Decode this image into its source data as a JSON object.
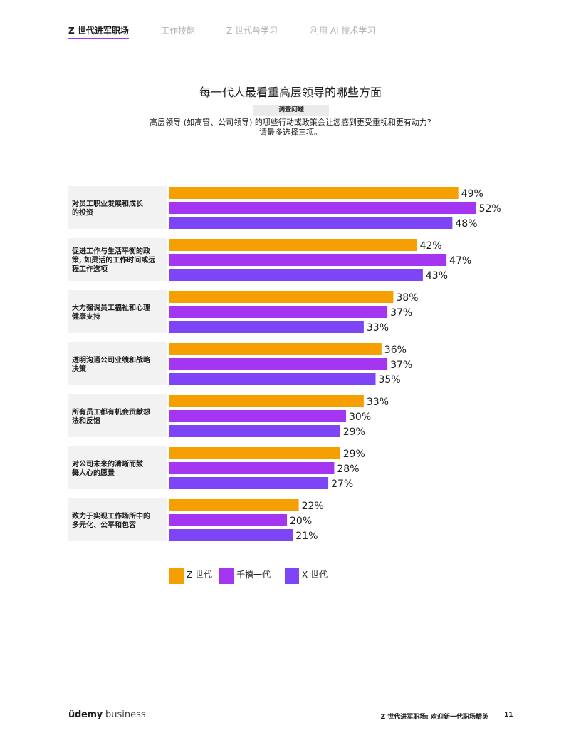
{
  "nav": {
    "tabs": [
      {
        "label": "Z 世代进军职场",
        "active": true
      },
      {
        "label": "工作技能",
        "active": false
      },
      {
        "label": "Z 世代与学习",
        "active": false
      },
      {
        "label": "利用 AI 技术学习",
        "active": false
      }
    ],
    "accent": "#a435f0"
  },
  "survey": {
    "badge": "调查问题",
    "question_line1": "高层领导 (如高管、公司领导) 的哪些行动或政策会让您感到更受重视和更有动力?",
    "question_line2": "请最多选择三项。"
  },
  "chart_data": {
    "type": "bar",
    "orientation": "horizontal",
    "title": "每一代人最看重高层领导的哪些方面",
    "categories": [
      "对员工职业发展和成长的投资",
      "促进工作与生活平衡的政策, 如灵活的工作时间或远程工作选项",
      "大力强调员工福祉和心理健康支持",
      "透明沟通公司业绩和战略决策",
      "所有员工都有机会贡献想法和反馈",
      "对公司未来的清晰而鼓舞人心的愿景",
      "致力于实现工作场所中的多元化、公平和包容"
    ],
    "series": [
      {
        "name": "Z 世代",
        "color": "#f59f00",
        "values": [
          49,
          42,
          38,
          36,
          33,
          29,
          22
        ]
      },
      {
        "name": "千禧一代",
        "color": "#a435f0",
        "values": [
          52,
          47,
          37,
          37,
          30,
          28,
          20
        ]
      },
      {
        "name": "X 世代",
        "color": "#7d45f5",
        "values": [
          48,
          43,
          33,
          35,
          29,
          27,
          21
        ]
      }
    ],
    "value_suffix": "%",
    "xlim": [
      0,
      100
    ],
    "grid": false,
    "legend_position": "bottom"
  },
  "footer": {
    "brand": "ûdemy",
    "brand_sub": "business",
    "doc_title": "Z 世代进军职场: 欢迎新一代职场精英",
    "page": "11"
  }
}
